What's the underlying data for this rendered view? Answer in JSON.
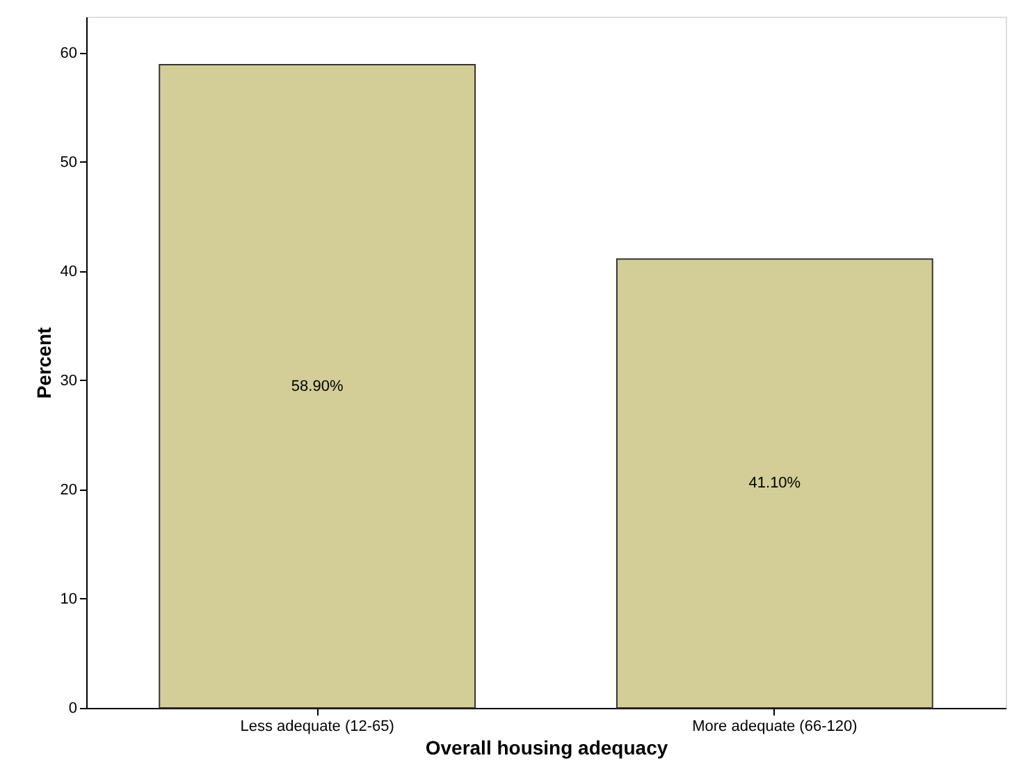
{
  "chart_data": {
    "type": "bar",
    "xlabel": "Overall housing adequacy",
    "ylabel": "Percent",
    "categories": [
      "Less adequate (12-65)",
      "More adequate (66-120)"
    ],
    "values": [
      58.9,
      41.1
    ],
    "value_labels": [
      "58.90%",
      "41.10%"
    ],
    "color": "#d3ce97",
    "ylim": [
      0,
      63.3
    ],
    "yticks": [
      0,
      10,
      20,
      30,
      40,
      50,
      60
    ],
    "grid": false
  }
}
